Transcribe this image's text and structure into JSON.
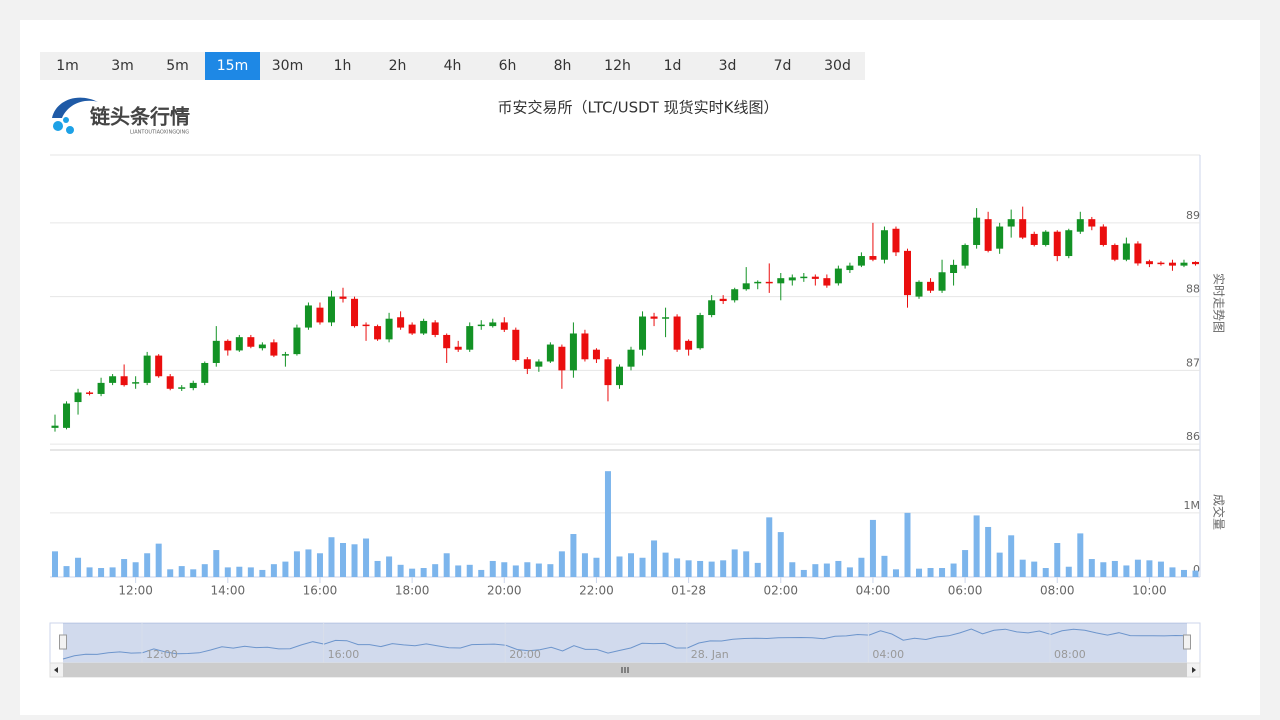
{
  "toolbar": {
    "intervals": [
      "1m",
      "3m",
      "5m",
      "15m",
      "30m",
      "1h",
      "2h",
      "4h",
      "6h",
      "8h",
      "12h",
      "1d",
      "3d",
      "7d",
      "30d"
    ],
    "active_interval": "15m"
  },
  "logo": {
    "text": "链头条行情",
    "subtext": "LIANTOUTIAOXINGQING"
  },
  "chart_data": {
    "type": "candlestick",
    "title": "币安交易所（LTC/USDT 现货实时K线图）",
    "y_axis_label": "实时走势图",
    "up_color": "#139225",
    "down_color": "#ea0e0e",
    "grid": true,
    "ylim": [
      85.92,
      89.92
    ],
    "yticks": [
      86,
      87,
      88,
      89
    ],
    "x": [
      null,
      null,
      null,
      null,
      null,
      null,
      null,
      "12:00",
      null,
      null,
      null,
      null,
      null,
      null,
      null,
      "14:00",
      null,
      null,
      null,
      null,
      null,
      null,
      null,
      "16:00",
      null,
      null,
      null,
      null,
      null,
      null,
      null,
      "18:00",
      null,
      null,
      null,
      null,
      null,
      null,
      null,
      "20:00",
      null,
      null,
      null,
      null,
      null,
      null,
      null,
      "22:00",
      null,
      null,
      null,
      null,
      null,
      null,
      null,
      "01-28",
      null,
      null,
      null,
      null,
      null,
      null,
      null,
      "02:00",
      null,
      null,
      null,
      null,
      null,
      null,
      null,
      "04:00",
      null,
      null,
      null,
      null,
      null,
      null,
      null,
      "06:00",
      null,
      null,
      null,
      null,
      null,
      null,
      null,
      "08:00",
      null,
      null,
      null,
      null,
      null,
      null,
      null,
      "10:00",
      null,
      null,
      null,
      null
    ],
    "open": [
      86.22,
      86.22,
      86.57,
      86.7,
      86.68,
      86.83,
      86.92,
      86.82,
      86.83,
      87.2,
      86.92,
      86.75,
      86.76,
      86.83,
      87.1,
      87.4,
      87.27,
      87.45,
      87.3,
      87.38,
      87.2,
      87.22,
      87.58,
      87.85,
      87.65,
      88.0,
      87.97,
      87.62,
      87.6,
      87.42,
      87.72,
      87.62,
      87.5,
      87.65,
      87.48,
      87.32,
      87.28,
      87.6,
      87.6,
      87.65,
      87.55,
      87.15,
      87.05,
      87.12,
      87.32,
      87.0,
      87.5,
      87.28,
      87.15,
      86.8,
      87.05,
      87.28,
      87.73,
      87.7,
      87.73,
      87.4,
      87.3,
      87.75,
      87.97,
      87.95,
      88.1,
      88.18,
      88.2,
      88.18,
      88.22,
      88.25,
      88.27,
      88.25,
      88.18,
      88.36,
      88.42,
      88.55,
      88.5,
      88.92,
      88.62,
      88.0,
      88.2,
      88.08,
      88.32,
      88.42,
      88.7,
      89.05,
      88.65,
      88.95,
      89.05,
      88.85,
      88.7,
      88.88,
      88.55,
      88.88,
      89.05,
      88.95,
      88.7,
      88.5,
      88.72,
      88.48,
      88.46,
      88.46,
      88.42,
      88.47
    ],
    "high": [
      86.4,
      86.58,
      86.75,
      86.72,
      86.9,
      86.95,
      87.08,
      86.92,
      87.25,
      87.22,
      86.95,
      86.8,
      86.86,
      87.12,
      87.6,
      87.42,
      87.48,
      87.48,
      87.38,
      87.42,
      87.25,
      87.62,
      87.92,
      87.92,
      88.08,
      88.12,
      88.0,
      87.65,
      87.62,
      87.78,
      87.8,
      87.65,
      87.7,
      87.68,
      87.5,
      87.4,
      87.65,
      87.68,
      87.7,
      87.72,
      87.58,
      87.18,
      87.15,
      87.38,
      87.35,
      87.65,
      87.55,
      87.3,
      87.18,
      87.08,
      87.32,
      87.8,
      87.78,
      87.85,
      87.76,
      87.42,
      87.78,
      88.02,
      88.02,
      88.12,
      88.4,
      88.22,
      88.45,
      88.32,
      88.3,
      88.32,
      88.3,
      88.3,
      88.42,
      88.46,
      88.6,
      89.0,
      88.95,
      88.95,
      88.65,
      88.22,
      88.25,
      88.5,
      88.5,
      88.72,
      89.2,
      89.15,
      89.0,
      89.18,
      89.22,
      88.88,
      88.9,
      88.9,
      88.92,
      89.15,
      89.08,
      88.98,
      88.72,
      88.8,
      88.75,
      88.5,
      88.48,
      88.5,
      88.5,
      88.48
    ],
    "low": [
      86.17,
      86.2,
      86.4,
      86.66,
      86.65,
      86.8,
      86.78,
      86.75,
      86.8,
      86.9,
      86.73,
      86.72,
      86.73,
      86.8,
      87.05,
      87.2,
      87.25,
      87.3,
      87.27,
      87.18,
      87.05,
      87.2,
      87.55,
      87.62,
      87.6,
      87.92,
      87.58,
      87.4,
      87.4,
      87.38,
      87.55,
      87.48,
      87.48,
      87.45,
      87.1,
      87.25,
      87.25,
      87.55,
      87.58,
      87.52,
      87.12,
      86.95,
      86.98,
      87.1,
      86.75,
      86.9,
      87.12,
      87.1,
      86.58,
      86.75,
      87.0,
      87.2,
      87.6,
      87.45,
      87.25,
      87.2,
      87.28,
      87.72,
      87.9,
      87.92,
      88.08,
      88.1,
      88.05,
      87.95,
      88.15,
      88.2,
      88.15,
      88.12,
      88.15,
      88.32,
      88.4,
      88.48,
      88.45,
      88.55,
      87.85,
      87.97,
      88.05,
      88.05,
      88.15,
      88.38,
      88.65,
      88.6,
      88.58,
      88.8,
      88.78,
      88.68,
      88.68,
      88.48,
      88.52,
      88.85,
      88.9,
      88.68,
      88.48,
      88.48,
      88.42,
      88.4,
      88.42,
      88.35,
      88.4,
      88.42
    ],
    "close": [
      86.25,
      86.55,
      86.7,
      86.68,
      86.83,
      86.92,
      86.8,
      86.84,
      87.2,
      86.92,
      86.75,
      86.77,
      86.83,
      87.1,
      87.4,
      87.27,
      87.45,
      87.32,
      87.35,
      87.2,
      87.22,
      87.58,
      87.88,
      87.65,
      88.0,
      87.97,
      87.6,
      87.6,
      87.42,
      87.7,
      87.58,
      87.5,
      87.67,
      87.48,
      87.3,
      87.28,
      87.6,
      87.62,
      87.65,
      87.55,
      87.14,
      87.02,
      87.12,
      87.35,
      87.0,
      87.5,
      87.15,
      87.15,
      86.8,
      87.05,
      87.28,
      87.73,
      87.7,
      87.72,
      87.28,
      87.28,
      87.75,
      87.95,
      87.94,
      88.1,
      88.18,
      88.2,
      88.18,
      88.25,
      88.26,
      88.27,
      88.24,
      88.15,
      88.38,
      88.42,
      88.55,
      88.5,
      88.9,
      88.6,
      88.02,
      88.2,
      88.08,
      88.33,
      88.43,
      88.7,
      89.07,
      88.62,
      88.95,
      89.05,
      88.8,
      88.7,
      88.88,
      88.55,
      88.9,
      89.05,
      88.95,
      88.7,
      88.5,
      88.72,
      88.45,
      88.44,
      88.44,
      88.42,
      88.46,
      88.44
    ],
    "volume": {
      "label": "成交量",
      "color": "#7cb5ec",
      "ylim": [
        0,
        1980000
      ],
      "yticks": [
        0,
        {
          "value": 1000000,
          "label": "1M"
        }
      ],
      "values": [
        400000,
        170000,
        300000,
        150000,
        140000,
        150000,
        280000,
        230000,
        370000,
        520000,
        120000,
        170000,
        120000,
        200000,
        420000,
        150000,
        160000,
        150000,
        110000,
        200000,
        240000,
        400000,
        430000,
        370000,
        620000,
        530000,
        510000,
        600000,
        250000,
        320000,
        190000,
        130000,
        140000,
        200000,
        370000,
        180000,
        190000,
        110000,
        250000,
        230000,
        180000,
        230000,
        210000,
        200000,
        400000,
        670000,
        370000,
        300000,
        1650000,
        320000,
        370000,
        300000,
        570000,
        380000,
        290000,
        260000,
        250000,
        240000,
        260000,
        430000,
        400000,
        220000,
        930000,
        700000,
        230000,
        110000,
        200000,
        210000,
        250000,
        150000,
        300000,
        890000,
        330000,
        120000,
        1000000,
        130000,
        140000,
        140000,
        210000,
        420000,
        960000,
        780000,
        380000,
        650000,
        270000,
        240000,
        140000,
        530000,
        160000,
        680000,
        280000,
        230000,
        250000,
        180000,
        270000,
        260000,
        240000,
        150000,
        110000,
        100000
      ]
    },
    "navigator": {
      "labels": [
        "12:00",
        "16:00",
        "20:00",
        "28. Jan",
        "04:00",
        "08:00"
      ]
    }
  }
}
